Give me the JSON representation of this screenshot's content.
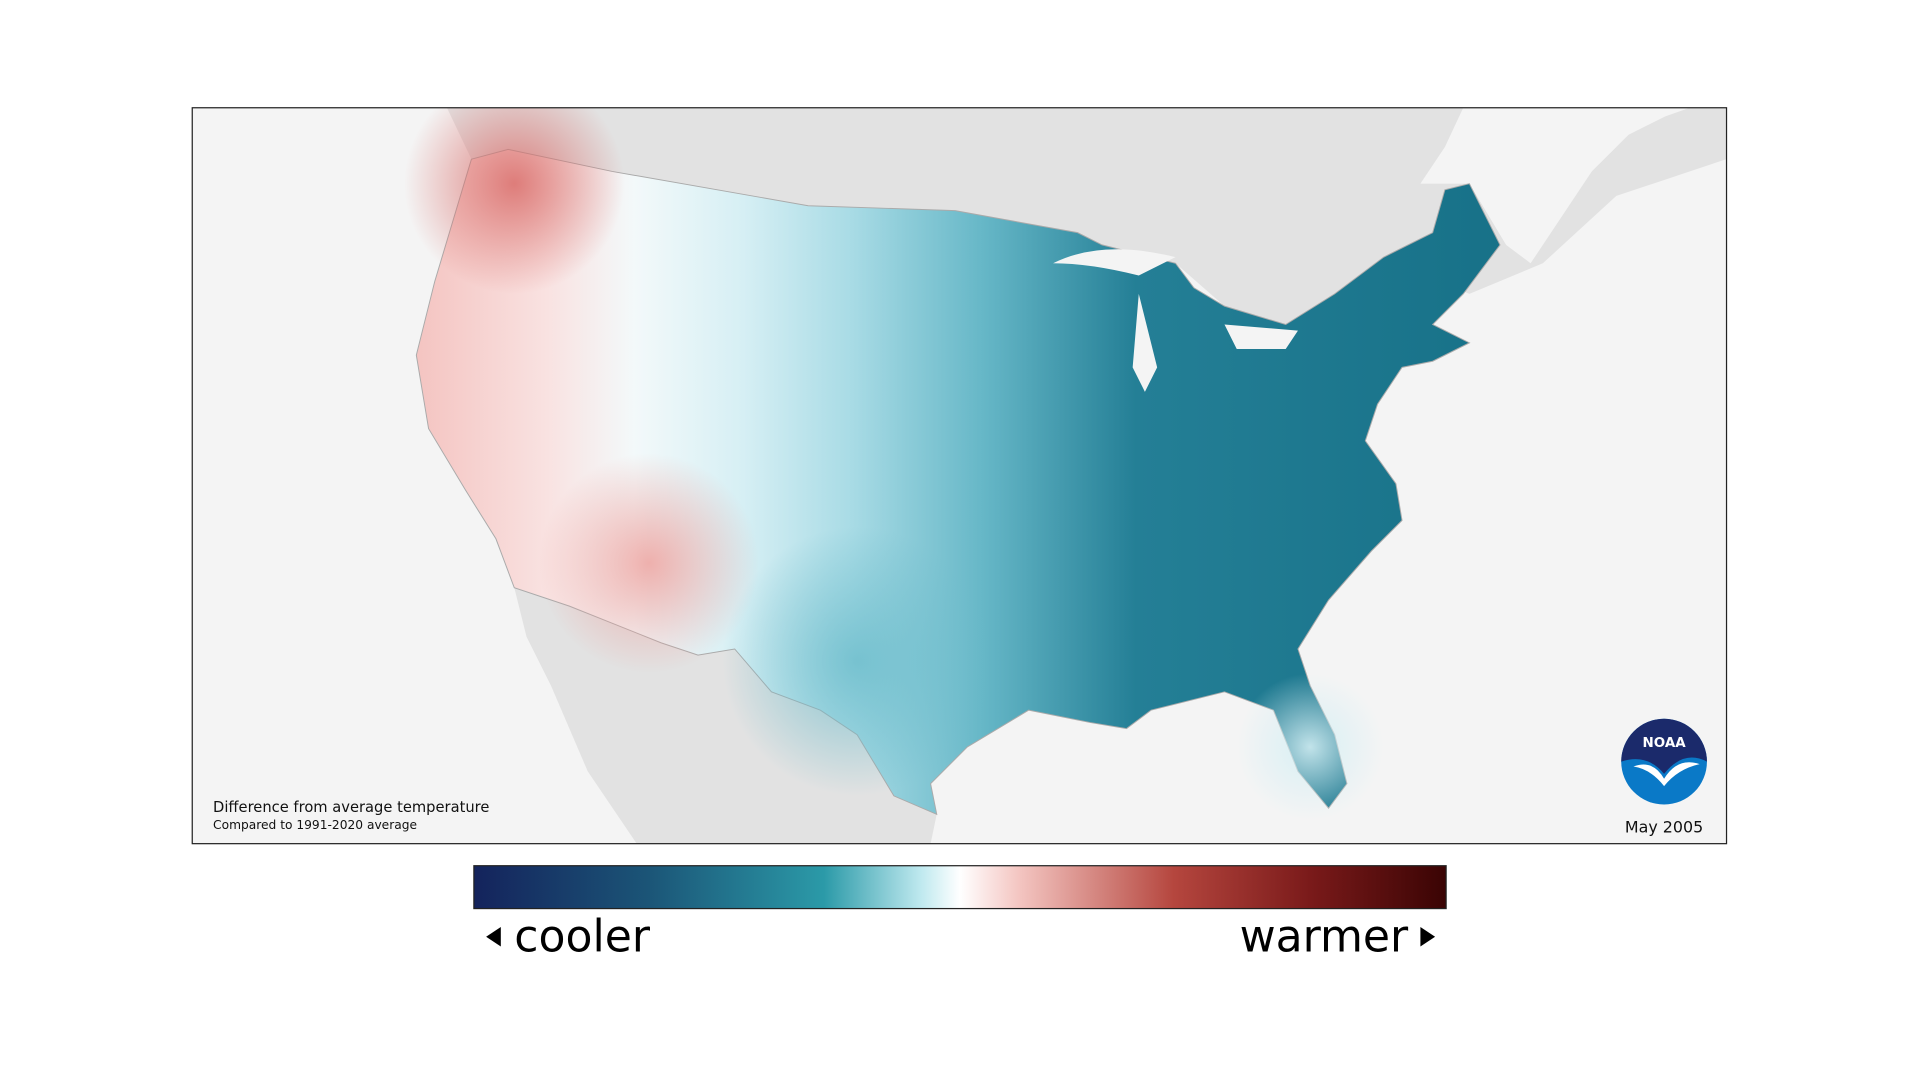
{
  "map": {
    "caption": "Difference from average temperature",
    "subcaption": "Compared to 1991-2020 average",
    "date": "May 2005"
  },
  "legend": {
    "low_label": "cooler",
    "high_label": "warmer"
  },
  "logo": {
    "text": "NOAA"
  }
}
